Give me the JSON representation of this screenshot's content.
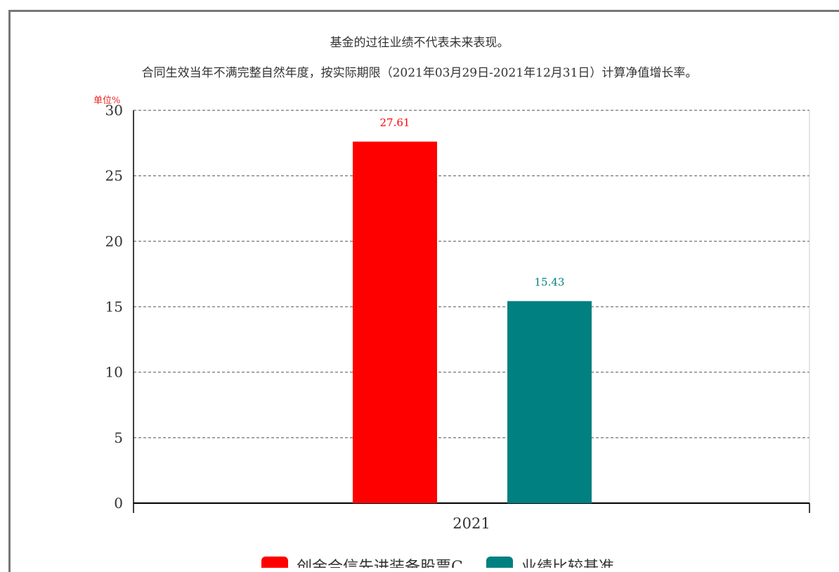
{
  "notes": {
    "line1": "基金的过往业绩不代表未来表现。",
    "line2": "合同生效当年不满完整自然年度，按实际期限（2021年03月29日-2021年12月31日）计算净值增长率。"
  },
  "unit_label": "单位%",
  "colors": {
    "fund": "#ff0000",
    "benchmark": "#008080",
    "grid": "#888888",
    "axis": "#000000"
  },
  "chart_data": {
    "type": "bar",
    "title": "",
    "xlabel": "",
    "ylabel": "单位%",
    "categories": [
      "2021"
    ],
    "series": [
      {
        "name": "创金合信先进装备股票C",
        "values": [
          27.61
        ],
        "color": "#ff0000",
        "label": "27.61"
      },
      {
        "name": "业绩比较基准",
        "values": [
          15.43
        ],
        "color": "#008080",
        "label": "15.43"
      }
    ],
    "ylim": [
      0,
      30
    ],
    "yticks": [
      0,
      5,
      10,
      15,
      20,
      25,
      30
    ],
    "grid": true,
    "legend": "bottom"
  }
}
